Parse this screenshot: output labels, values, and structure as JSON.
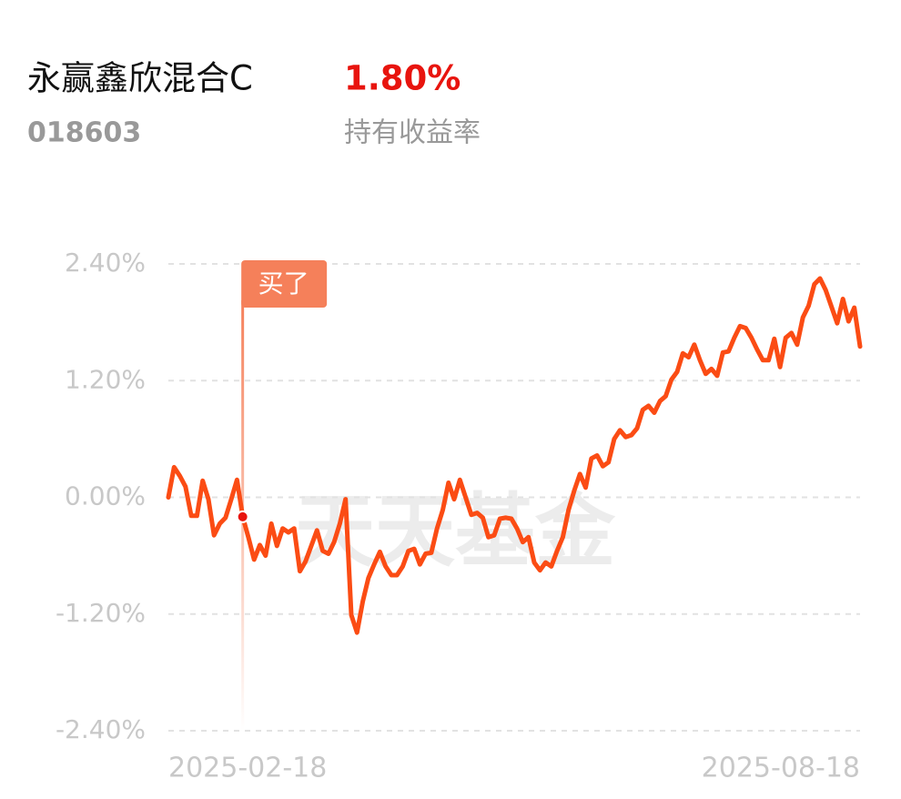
{
  "header": {
    "fund_name": "永赢鑫欣混合C",
    "return": "1.80%",
    "fund_code": "018603",
    "return_label": "持有收益率"
  },
  "chart_data": {
    "type": "line",
    "watermark": "天天基金",
    "categories": [
      "2025-02-18",
      null,
      null,
      null,
      null,
      null,
      null,
      null,
      null,
      null,
      null,
      null,
      null,
      null,
      null,
      null,
      null,
      null,
      null,
      null,
      null,
      null,
      null,
      null,
      null,
      null,
      null,
      null,
      null,
      null,
      null,
      null,
      null,
      null,
      null,
      null,
      null,
      null,
      null,
      null,
      null,
      null,
      null,
      null,
      null,
      null,
      null,
      null,
      null,
      null,
      null,
      null,
      null,
      null,
      null,
      null,
      null,
      null,
      null,
      null,
      null,
      null,
      null,
      null,
      null,
      null,
      null,
      null,
      null,
      null,
      null,
      null,
      null,
      null,
      null,
      null,
      null,
      null,
      null,
      null,
      null,
      null,
      null,
      null,
      null,
      null,
      null,
      null,
      null,
      null,
      null,
      null,
      null,
      null,
      null,
      null,
      null,
      null,
      null,
      null,
      null,
      null,
      null,
      null,
      null,
      null,
      null,
      null,
      null,
      null,
      null,
      null,
      null,
      null,
      null,
      null,
      null,
      null,
      null,
      null,
      null,
      "2025-08-18"
    ],
    "series": [
      {
        "color": "#fb4c14",
        "values": [
          0.0,
          0.31,
          0.22,
          0.11,
          -0.19,
          -0.19,
          0.17,
          -0.02,
          -0.39,
          -0.27,
          -0.21,
          -0.02,
          0.18,
          -0.2,
          -0.41,
          -0.64,
          -0.49,
          -0.6,
          -0.27,
          -0.5,
          -0.32,
          -0.36,
          -0.32,
          -0.76,
          -0.66,
          -0.5,
          -0.34,
          -0.55,
          -0.58,
          -0.46,
          -0.27,
          -0.02,
          -1.21,
          -1.39,
          -1.07,
          -0.83,
          -0.69,
          -0.56,
          -0.71,
          -0.8,
          -0.8,
          -0.71,
          -0.55,
          -0.53,
          -0.69,
          -0.58,
          -0.57,
          -0.32,
          -0.13,
          0.15,
          -0.02,
          0.18,
          0.0,
          -0.18,
          -0.16,
          -0.21,
          -0.41,
          -0.39,
          -0.22,
          -0.21,
          -0.22,
          -0.32,
          -0.46,
          -0.41,
          -0.67,
          -0.75,
          -0.67,
          -0.71,
          -0.55,
          -0.41,
          -0.13,
          0.07,
          0.24,
          0.1,
          0.4,
          0.43,
          0.32,
          0.36,
          0.6,
          0.69,
          0.62,
          0.64,
          0.71,
          0.9,
          0.94,
          0.87,
          0.99,
          1.04,
          1.21,
          1.29,
          1.48,
          1.44,
          1.57,
          1.41,
          1.27,
          1.32,
          1.25,
          1.49,
          1.5,
          1.64,
          1.76,
          1.74,
          1.64,
          1.52,
          1.41,
          1.41,
          1.63,
          1.34,
          1.64,
          1.69,
          1.57,
          1.85,
          1.97,
          2.19,
          2.25,
          2.13,
          1.96,
          1.79,
          2.04,
          1.81,
          1.95,
          1.55
        ]
      }
    ],
    "annotations": [
      {
        "text": "买了",
        "index": 13
      }
    ],
    "ylim": [
      -2.4,
      2.4
    ],
    "yticks": [
      {
        "value": 2.4,
        "label": "2.40%"
      },
      {
        "value": 1.2,
        "label": "1.20%"
      },
      {
        "value": 0,
        "label": "0.00%"
      },
      {
        "value": -1.2,
        "label": "-1.20%"
      },
      {
        "value": -2.4,
        "label": "-2.40%"
      }
    ],
    "grid": true
  }
}
